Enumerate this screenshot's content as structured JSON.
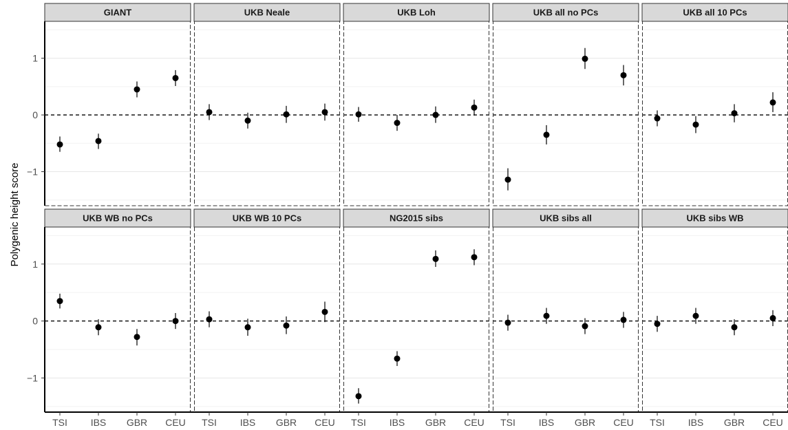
{
  "chart_data": {
    "type": "scatter",
    "ylabel": "Polygenic height score",
    "categories": [
      "TSI",
      "IBS",
      "GBR",
      "CEU"
    ],
    "ylim": [
      -1.6,
      1.65
    ],
    "yticks": [
      -1,
      0,
      1
    ],
    "ytick_labels": [
      "−1",
      "0",
      "1"
    ],
    "reference_line_y": 0,
    "grid": true,
    "panels": [
      {
        "title": "GIANT",
        "values": [
          -0.52,
          -0.46,
          0.45,
          0.65
        ],
        "lower": [
          -0.65,
          -0.6,
          0.31,
          0.51
        ],
        "upper": [
          -0.38,
          -0.33,
          0.59,
          0.79
        ]
      },
      {
        "title": "UKB Neale",
        "values": [
          0.05,
          -0.1,
          0.01,
          0.05
        ],
        "lower": [
          -0.09,
          -0.24,
          -0.14,
          -0.1
        ],
        "upper": [
          0.19,
          0.04,
          0.16,
          0.2
        ]
      },
      {
        "title": "UKB Loh",
        "values": [
          0.01,
          -0.14,
          0.0,
          0.13
        ],
        "lower": [
          -0.12,
          -0.28,
          -0.14,
          -0.01
        ],
        "upper": [
          0.14,
          0.0,
          0.15,
          0.27
        ]
      },
      {
        "title": "UKB all no PCs",
        "values": [
          -1.14,
          -0.35,
          0.99,
          0.7
        ],
        "lower": [
          -1.33,
          -0.52,
          0.81,
          0.52
        ],
        "upper": [
          -0.94,
          -0.18,
          1.18,
          0.88
        ]
      },
      {
        "title": "UKB all 10 PCs",
        "values": [
          -0.06,
          -0.17,
          0.03,
          0.22
        ],
        "lower": [
          -0.2,
          -0.32,
          -0.13,
          0.05
        ],
        "upper": [
          0.08,
          -0.02,
          0.19,
          0.4
        ]
      },
      {
        "title": "UKB WB no PCs",
        "values": [
          0.35,
          -0.11,
          -0.28,
          0.0
        ],
        "lower": [
          0.22,
          -0.25,
          -0.43,
          -0.14
        ],
        "upper": [
          0.48,
          0.03,
          -0.14,
          0.14
        ]
      },
      {
        "title": "UKB WB 10 PCs",
        "values": [
          0.03,
          -0.11,
          -0.08,
          0.16
        ],
        "lower": [
          -0.11,
          -0.26,
          -0.23,
          -0.02
        ],
        "upper": [
          0.17,
          0.04,
          0.08,
          0.34
        ]
      },
      {
        "title": "NG2015 sibs",
        "values": [
          -1.32,
          -0.66,
          1.09,
          1.12
        ],
        "lower": [
          -1.45,
          -0.79,
          0.95,
          0.98
        ],
        "upper": [
          -1.18,
          -0.53,
          1.24,
          1.26
        ]
      },
      {
        "title": "UKB sibs all",
        "values": [
          -0.03,
          0.09,
          -0.09,
          0.02
        ],
        "lower": [
          -0.17,
          -0.05,
          -0.23,
          -0.12
        ],
        "upper": [
          0.11,
          0.23,
          0.05,
          0.16
        ]
      },
      {
        "title": "UKB sibs WB",
        "values": [
          -0.05,
          0.09,
          -0.11,
          0.05
        ],
        "lower": [
          -0.19,
          -0.05,
          -0.25,
          -0.09
        ],
        "upper": [
          0.09,
          0.23,
          0.03,
          0.19
        ]
      }
    ]
  }
}
